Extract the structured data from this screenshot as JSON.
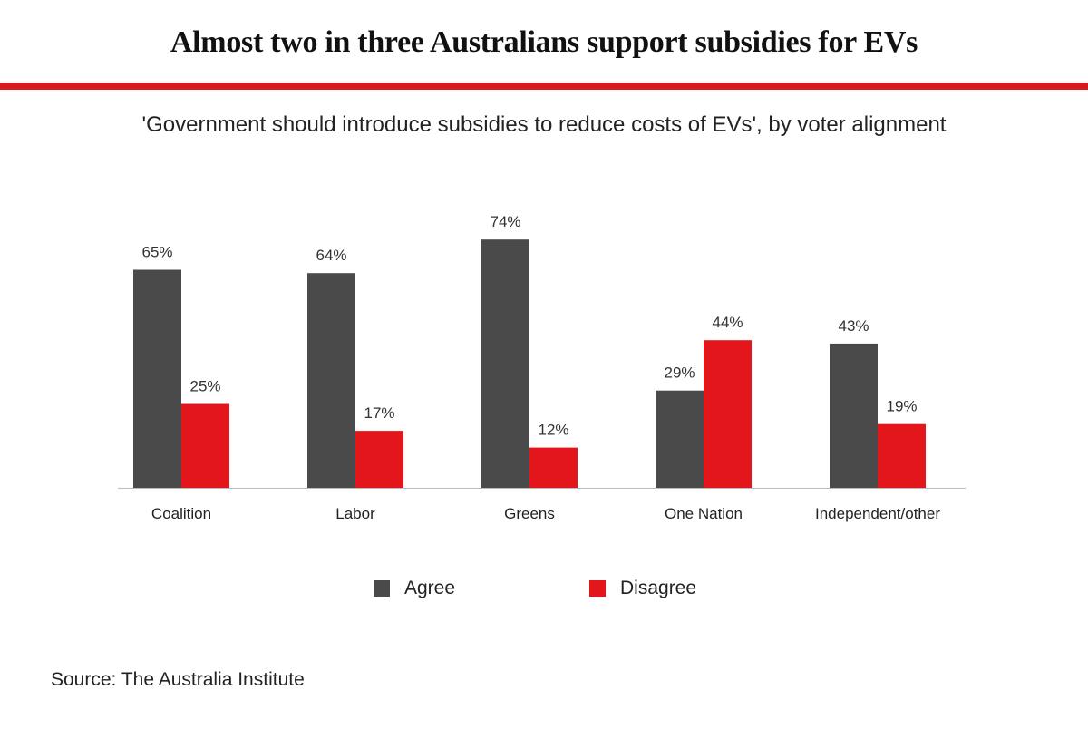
{
  "title": "Almost two in three Australians support subsidies for EVs",
  "subtitle": "'Government should introduce subsidies to reduce costs of EVs', by voter alignment",
  "source": "Source: The Australia Institute",
  "colors": {
    "agree": "#4a4a4a",
    "disagree": "#e3171b",
    "accent_rule": "#d71920",
    "axis": "#bdbdbd"
  },
  "chart_data": {
    "type": "bar",
    "title": "Almost two in three Australians support subsidies for EVs",
    "subtitle": "'Government should introduce subsidies to reduce costs of EVs', by voter alignment",
    "xlabel": "",
    "ylabel": "",
    "ylim": [
      0,
      100
    ],
    "grid": false,
    "legend_position": "bottom-center",
    "categories": [
      "Coalition",
      "Labor",
      "Greens",
      "One Nation",
      "Independent/other"
    ],
    "series": [
      {
        "name": "Agree",
        "values": [
          65,
          64,
          74,
          29,
          43
        ],
        "labels": [
          "65%",
          "64%",
          "74%",
          "29%",
          "43%"
        ]
      },
      {
        "name": "Disagree",
        "values": [
          25,
          17,
          12,
          44,
          19
        ],
        "labels": [
          "25%",
          "17%",
          "12%",
          "44%",
          "19%"
        ]
      }
    ]
  }
}
